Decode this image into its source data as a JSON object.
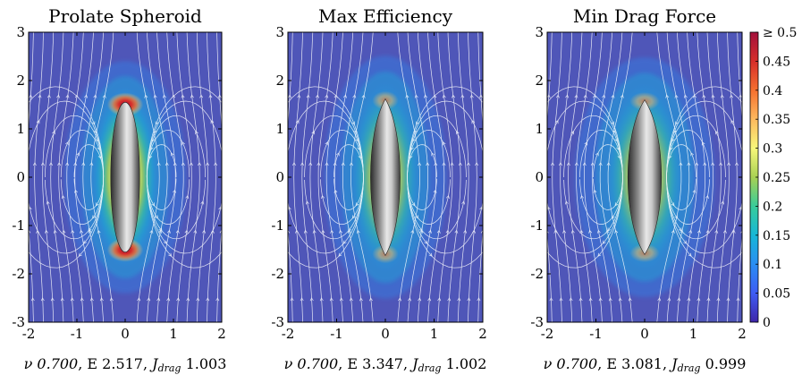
{
  "chart_data": [
    {
      "type": "heatmap",
      "title": "Prolate Spheroid",
      "caption": {
        "nu": "ν 0.700",
        "e": ", E 2.517, ",
        "j": "J",
        "jsub": "drag",
        "jval": " 1.003"
      },
      "xlim": [
        -2,
        2
      ],
      "ylim": [
        -3,
        3
      ],
      "xticks": [
        "-2",
        "-1",
        "0",
        "1",
        "2"
      ],
      "yticks": [
        "-3",
        "-2",
        "-1",
        "0",
        "1",
        "2",
        "3"
      ],
      "body": {
        "shape": "spheroid",
        "half_width": 0.3,
        "half_length": 1.55
      },
      "streamlines": true
    },
    {
      "type": "heatmap",
      "title": "Max Efficiency",
      "caption": {
        "nu": "ν 0.700",
        "e": ", E 3.347, ",
        "j": "J",
        "jsub": "drag",
        "jval": " 1.002"
      },
      "xlim": [
        -2,
        2
      ],
      "ylim": [
        -3,
        3
      ],
      "xticks": [
        "-2",
        "-1",
        "0",
        "1",
        "2"
      ],
      "yticks": [
        "-3",
        "-2",
        "-1",
        "0",
        "1",
        "2",
        "3"
      ],
      "body": {
        "shape": "pointed",
        "half_width": 0.3,
        "half_length": 1.62
      },
      "streamlines": true
    },
    {
      "type": "heatmap",
      "title": "Min Drag Force",
      "caption": {
        "nu": "ν 0.700",
        "e": ", E 3.081, ",
        "j": "J",
        "jsub": "drag",
        "jval": " 0.999"
      },
      "xlim": [
        -2,
        2
      ],
      "ylim": [
        -3,
        3
      ],
      "xticks": [
        "-2",
        "-1",
        "0",
        "1",
        "2"
      ],
      "yticks": [
        "-3",
        "-2",
        "-1",
        "0",
        "1",
        "2",
        "3"
      ],
      "body": {
        "shape": "pointed",
        "half_width": 0.34,
        "half_length": 1.6
      },
      "streamlines": true
    }
  ],
  "colorbar": {
    "min": 0,
    "max": 0.5,
    "ticks": [
      {
        "value": 0.5,
        "label": "≥ 0.5"
      },
      {
        "value": 0.45,
        "label": "0.45"
      },
      {
        "value": 0.4,
        "label": "0.4"
      },
      {
        "value": 0.35,
        "label": "0.35"
      },
      {
        "value": 0.3,
        "label": "0.3"
      },
      {
        "value": 0.25,
        "label": "0.25"
      },
      {
        "value": 0.2,
        "label": "0.2"
      },
      {
        "value": 0.15,
        "label": "0.15"
      },
      {
        "value": 0.1,
        "label": "0.1"
      },
      {
        "value": 0.05,
        "label": "0.05"
      },
      {
        "value": 0,
        "label": "0"
      }
    ],
    "colors": [
      "#3e26a8",
      "#3e5cf4",
      "#2a8ef3",
      "#16b7d7",
      "#39cc9a",
      "#a8d153",
      "#f8f77a",
      "#fdb95e",
      "#f5702f",
      "#d62e2a",
      "#a3103c"
    ]
  }
}
